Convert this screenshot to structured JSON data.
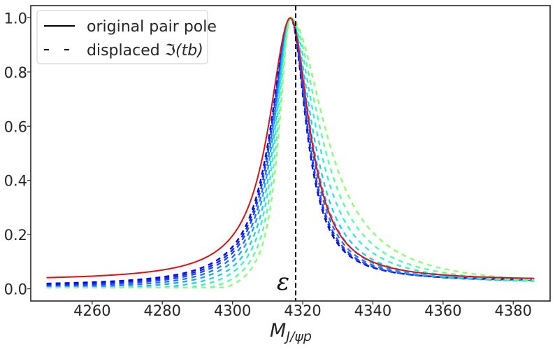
{
  "chart_data": {
    "type": "line",
    "title": "",
    "xlabel": {
      "main": "M",
      "subscript": "J/ψp"
    },
    "ylabel": "",
    "xlim": [
      4242.5,
      4390.5
    ],
    "ylim": [
      -0.045,
      1.045
    ],
    "x_ticks": [
      4260,
      4280,
      4300,
      4320,
      4340,
      4360,
      4380
    ],
    "y_ticks": [
      0.0,
      0.2,
      0.4,
      0.6,
      0.8,
      1.0
    ],
    "x_tick_labels": [
      "4260",
      "4280",
      "4300",
      "4320",
      "4340",
      "4360",
      "4380"
    ],
    "y_tick_labels": [
      "0.0",
      "0.2",
      "0.4",
      "0.6",
      "0.8",
      "1.0"
    ],
    "grid": false,
    "legend": {
      "placement": "top-left",
      "entries": [
        {
          "label": "original pair pole",
          "style": "solid"
        },
        {
          "label_prefix": "displaced ",
          "label_math": "ℑ(tb)",
          "style": "dashed"
        }
      ]
    },
    "threshold": {
      "x": 4318,
      "label": "ε"
    },
    "x_range": [
      4247,
      4386
    ],
    "original_curve": {
      "name": "original pair pole",
      "color": "#dd1111",
      "peak_x": 4316.5,
      "width_left": 7.5,
      "width_right": 6.5,
      "samples": [
        {
          "x": 4247,
          "y": 0.048
        },
        {
          "x": 4260,
          "y": 0.063
        },
        {
          "x": 4280,
          "y": 0.105
        },
        {
          "x": 4300,
          "y": 0.26
        },
        {
          "x": 4310,
          "y": 0.55
        },
        {
          "x": 4316,
          "y": 1.0
        },
        {
          "x": 4320,
          "y": 0.55
        },
        {
          "x": 4330,
          "y": 0.2
        },
        {
          "x": 4340,
          "y": 0.1
        },
        {
          "x": 4360,
          "y": 0.06
        },
        {
          "x": 4386,
          "y": 0.04
        }
      ]
    },
    "displaced_series": [
      {
        "name": "displaced 1",
        "color": "#0000ee",
        "width_left": 6.8,
        "width_right": 5.4,
        "left_offset": 0.01,
        "right_offset": 0.028
      },
      {
        "name": "displaced 2",
        "color": "#0f1ff5",
        "width_left": 6.6,
        "width_right": 5.6,
        "left_offset": 0.006,
        "right_offset": 0.026
      },
      {
        "name": "displaced 3",
        "color": "#1948ff",
        "width_left": 6.4,
        "width_right": 5.8,
        "left_offset": 0.002,
        "right_offset": 0.024
      },
      {
        "name": "displaced 4",
        "color": "#1d72ff",
        "width_left": 6.1,
        "width_right": 6.2,
        "left_offset": -0.003,
        "right_offset": 0.022
      },
      {
        "name": "displaced 5",
        "color": "#1c9fff",
        "width_left": 5.8,
        "width_right": 6.7,
        "left_offset": -0.009,
        "right_offset": 0.02
      },
      {
        "name": "displaced 6",
        "color": "#1ecde8",
        "width_left": 5.4,
        "width_right": 7.4,
        "left_offset": -0.016,
        "right_offset": 0.017
      },
      {
        "name": "displaced 7",
        "color": "#2ff0d0",
        "width_left": 5.0,
        "width_right": 8.6,
        "left_offset": -0.024,
        "right_offset": 0.014
      },
      {
        "name": "displaced 8",
        "color": "#55ffa0",
        "width_left": 4.5,
        "width_right": 10.0,
        "left_offset": -0.032,
        "right_offset": 0.01
      },
      {
        "name": "displaced 9",
        "color": "#88ff70",
        "width_left": 4.0,
        "width_right": 11.8,
        "left_offset": -0.04,
        "right_offset": 0.006
      }
    ]
  }
}
